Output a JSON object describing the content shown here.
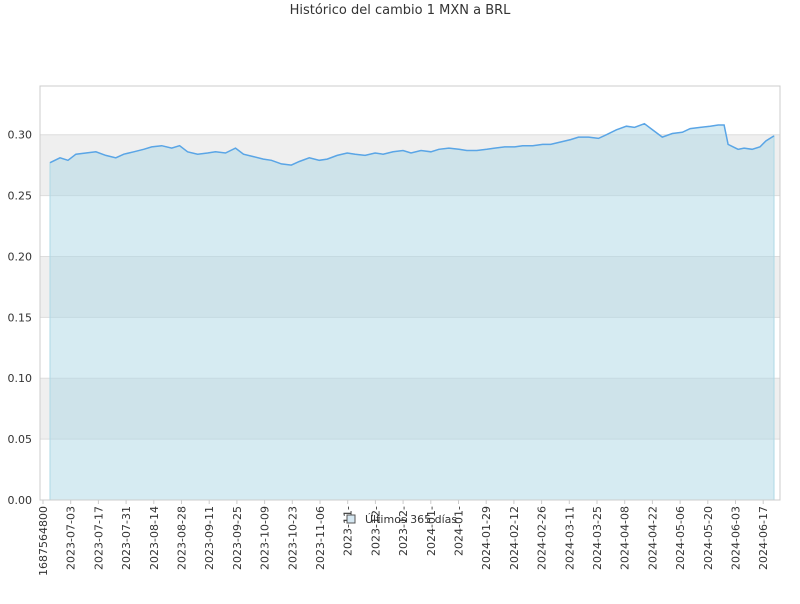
{
  "chart_data": {
    "type": "area",
    "title": "Histórico del cambio 1 MXN a BRL",
    "xlabel": "",
    "ylabel": "",
    "ylim": [
      0,
      0.34
    ],
    "yticks": [
      "0.00",
      "0.05",
      "0.10",
      "0.15",
      "0.20",
      "0.25",
      "0.30"
    ],
    "xticks": [
      "1687564800",
      "2023-07-03",
      "2023-07-17",
      "2023-07-31",
      "2023-08-14",
      "2023-08-28",
      "2023-09-11",
      "2023-09-25",
      "2023-10-09",
      "2023-10-23",
      "2023-11-06",
      "2023-11-",
      "2023-12-",
      "2023-12-",
      "2024-01-",
      "2024-01-",
      "2024-01-29",
      "2024-02-12",
      "2024-02-26",
      "2024-03-11",
      "2024-03-25",
      "2024-04-08",
      "2024-04-22",
      "2024-05-06",
      "2024-05-20",
      "2024-06-03",
      "2024-06-17"
    ],
    "grid": true,
    "legend_position": "bottom-center",
    "colors": {
      "line": "#5aa5e6",
      "fill": "#add8e6",
      "band": "#efefef",
      "grid": "#dddddd",
      "axis": "#cccccc",
      "text": "#333333"
    },
    "series": [
      {
        "name": "Últimos 365 días",
        "x": [
          "2023-06-24",
          "2023-06-29",
          "2023-07-03",
          "2023-07-07",
          "2023-07-12",
          "2023-07-17",
          "2023-07-22",
          "2023-07-27",
          "2023-07-31",
          "2023-08-05",
          "2023-08-10",
          "2023-08-14",
          "2023-08-19",
          "2023-08-24",
          "2023-08-28",
          "2023-09-01",
          "2023-09-06",
          "2023-09-11",
          "2023-09-15",
          "2023-09-20",
          "2023-09-25",
          "2023-09-29",
          "2023-10-04",
          "2023-10-09",
          "2023-10-13",
          "2023-10-18",
          "2023-10-23",
          "2023-10-27",
          "2023-11-01",
          "2023-11-06",
          "2023-11-10",
          "2023-11-15",
          "2023-11-20",
          "2023-11-24",
          "2023-11-29",
          "2023-12-04",
          "2023-12-08",
          "2023-12-13",
          "2023-12-18",
          "2023-12-22",
          "2023-12-27",
          "2024-01-01",
          "2024-01-05",
          "2024-01-10",
          "2024-01-15",
          "2024-01-19",
          "2024-01-24",
          "2024-01-29",
          "2024-02-02",
          "2024-02-07",
          "2024-02-12",
          "2024-02-16",
          "2024-02-21",
          "2024-02-26",
          "2024-03-01",
          "2024-03-06",
          "2024-03-11",
          "2024-03-15",
          "2024-03-20",
          "2024-03-25",
          "2024-03-29",
          "2024-04-03",
          "2024-04-08",
          "2024-04-12",
          "2024-04-17",
          "2024-04-22",
          "2024-04-26",
          "2024-05-01",
          "2024-05-06",
          "2024-05-10",
          "2024-05-15",
          "2024-05-20",
          "2024-05-24",
          "2024-05-27",
          "2024-05-29",
          "2024-06-03",
          "2024-06-06",
          "2024-06-10",
          "2024-06-14",
          "2024-06-17",
          "2024-06-21"
        ],
        "values": [
          0.277,
          0.281,
          0.279,
          0.284,
          0.285,
          0.286,
          0.283,
          0.281,
          0.284,
          0.286,
          0.288,
          0.29,
          0.291,
          0.289,
          0.291,
          0.286,
          0.284,
          0.285,
          0.286,
          0.285,
          0.289,
          0.284,
          0.282,
          0.28,
          0.279,
          0.276,
          0.275,
          0.278,
          0.281,
          0.279,
          0.28,
          0.283,
          0.285,
          0.284,
          0.283,
          0.285,
          0.284,
          0.286,
          0.287,
          0.285,
          0.287,
          0.286,
          0.288,
          0.289,
          0.288,
          0.287,
          0.287,
          0.288,
          0.289,
          0.29,
          0.29,
          0.291,
          0.291,
          0.292,
          0.292,
          0.294,
          0.296,
          0.298,
          0.298,
          0.297,
          0.3,
          0.304,
          0.307,
          0.306,
          0.309,
          0.303,
          0.298,
          0.301,
          0.302,
          0.305,
          0.306,
          0.307,
          0.308,
          0.308,
          0.292,
          0.288,
          0.289,
          0.288,
          0.29,
          0.295,
          0.299
        ]
      }
    ]
  }
}
